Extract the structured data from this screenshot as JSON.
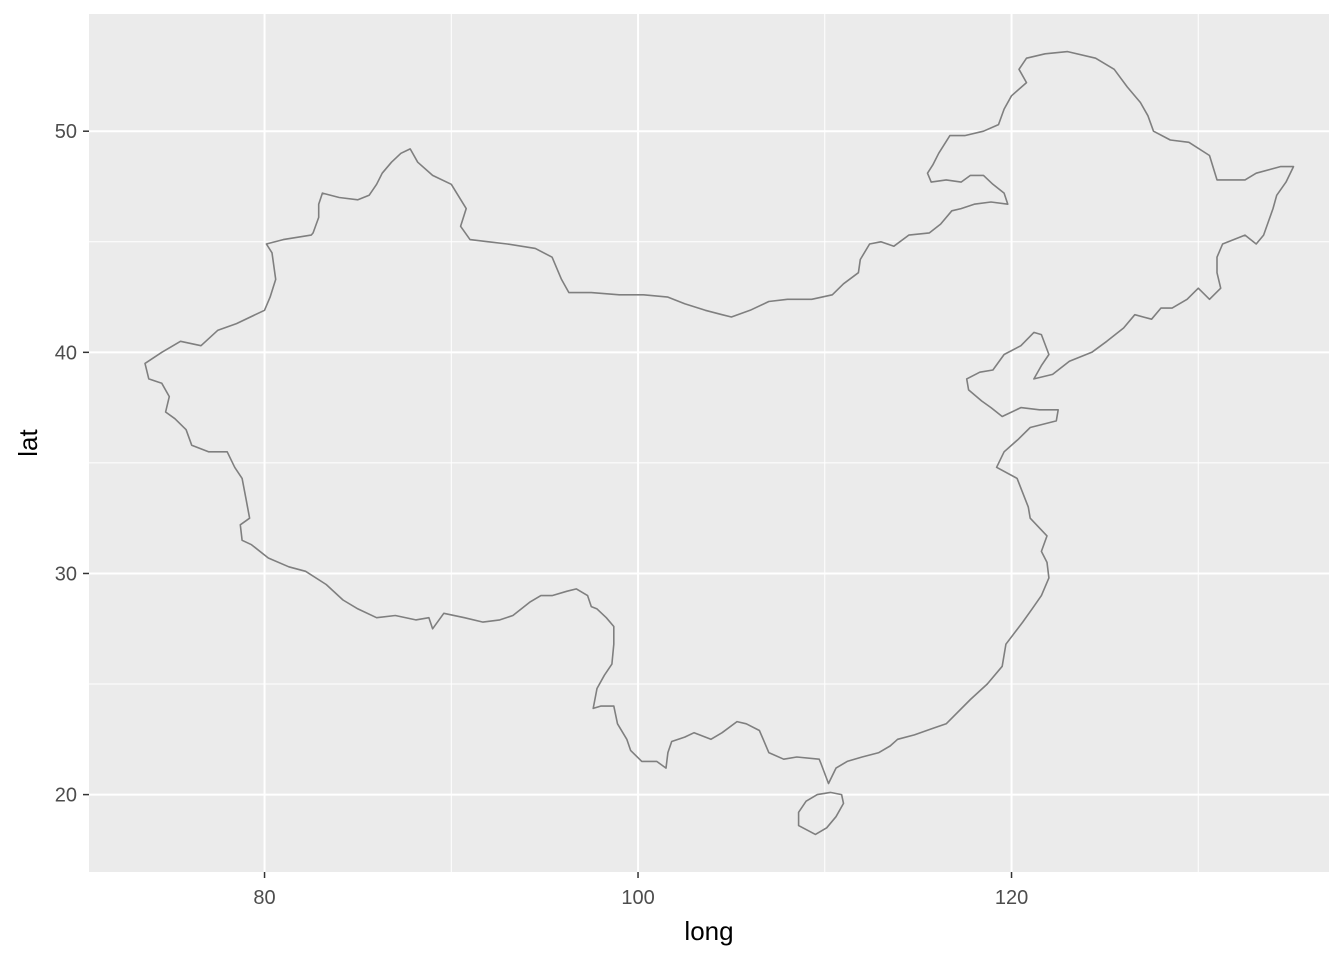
{
  "chart_data": {
    "type": "map",
    "xlabel": "long",
    "ylabel": "lat",
    "xlim": [
      70.6,
      137.0
    ],
    "ylim": [
      16.5,
      55.3
    ],
    "x_major_ticks": [
      80,
      100,
      120
    ],
    "x_minor_ticks": [
      90,
      110,
      130
    ],
    "y_major_ticks": [
      20,
      30,
      40,
      50
    ],
    "y_minor_ticks": [
      25,
      35,
      45
    ],
    "grid": true,
    "panel_color": "#ebebeb",
    "grid_color": "#ffffff",
    "outline_color": "#7f7f7f",
    "fill": "none",
    "polygons": [
      {
        "name": "mainland",
        "points": [
          [
            73.6,
            39.5
          ],
          [
            74.5,
            40.0
          ],
          [
            75.5,
            40.5
          ],
          [
            76.6,
            40.3
          ],
          [
            77.5,
            41.0
          ],
          [
            78.5,
            41.3
          ],
          [
            80.0,
            41.9
          ],
          [
            80.3,
            42.5
          ],
          [
            80.6,
            43.3
          ],
          [
            80.4,
            44.5
          ],
          [
            80.1,
            44.9
          ],
          [
            81.0,
            45.1
          ],
          [
            82.5,
            45.3
          ],
          [
            82.6,
            45.4
          ],
          [
            82.9,
            46.1
          ],
          [
            82.9,
            46.7
          ],
          [
            83.1,
            47.2
          ],
          [
            84.0,
            47.0
          ],
          [
            85.0,
            46.9
          ],
          [
            85.6,
            47.1
          ],
          [
            86.0,
            47.6
          ],
          [
            86.3,
            48.1
          ],
          [
            86.8,
            48.6
          ],
          [
            87.3,
            49.0
          ],
          [
            87.8,
            49.2
          ],
          [
            88.2,
            48.6
          ],
          [
            89.0,
            48.0
          ],
          [
            90.0,
            47.6
          ],
          [
            90.8,
            46.5
          ],
          [
            90.5,
            45.7
          ],
          [
            91.0,
            45.1
          ],
          [
            92.0,
            45.0
          ],
          [
            93.0,
            44.9
          ],
          [
            94.5,
            44.7
          ],
          [
            95.4,
            44.3
          ],
          [
            95.9,
            43.3
          ],
          [
            96.3,
            42.7
          ],
          [
            97.5,
            42.7
          ],
          [
            99.0,
            42.6
          ],
          [
            100.3,
            42.6
          ],
          [
            101.6,
            42.5
          ],
          [
            102.5,
            42.2
          ],
          [
            103.6,
            41.9
          ],
          [
            104.5,
            41.7
          ],
          [
            105.0,
            41.6
          ],
          [
            106.0,
            41.9
          ],
          [
            107.0,
            42.3
          ],
          [
            108.0,
            42.4
          ],
          [
            109.3,
            42.4
          ],
          [
            110.4,
            42.6
          ],
          [
            111.0,
            43.1
          ],
          [
            111.8,
            43.6
          ],
          [
            111.9,
            44.2
          ],
          [
            112.4,
            44.9
          ],
          [
            113.0,
            45.0
          ],
          [
            113.7,
            44.8
          ],
          [
            114.5,
            45.3
          ],
          [
            115.6,
            45.4
          ],
          [
            116.2,
            45.8
          ],
          [
            116.8,
            46.4
          ],
          [
            117.3,
            46.5
          ],
          [
            118.0,
            46.7
          ],
          [
            118.9,
            46.8
          ],
          [
            119.8,
            46.7
          ],
          [
            119.6,
            47.2
          ],
          [
            119.0,
            47.6
          ],
          [
            118.5,
            48.0
          ],
          [
            117.8,
            48.0
          ],
          [
            117.3,
            47.7
          ],
          [
            116.5,
            47.8
          ],
          [
            115.7,
            47.7
          ],
          [
            115.5,
            48.1
          ],
          [
            115.8,
            48.5
          ],
          [
            116.1,
            49.0
          ],
          [
            116.7,
            49.8
          ],
          [
            117.5,
            49.8
          ],
          [
            118.5,
            50.0
          ],
          [
            119.3,
            50.3
          ],
          [
            119.6,
            51.0
          ],
          [
            120.0,
            51.6
          ],
          [
            120.8,
            52.2
          ],
          [
            120.4,
            52.8
          ],
          [
            120.8,
            53.3
          ],
          [
            121.8,
            53.5
          ],
          [
            123.0,
            53.6
          ],
          [
            124.5,
            53.3
          ],
          [
            125.5,
            52.8
          ],
          [
            126.2,
            52.0
          ],
          [
            126.9,
            51.3
          ],
          [
            127.3,
            50.7
          ],
          [
            127.6,
            50.0
          ],
          [
            128.5,
            49.6
          ],
          [
            129.5,
            49.5
          ],
          [
            130.6,
            48.9
          ],
          [
            131.0,
            47.8
          ],
          [
            132.5,
            47.8
          ],
          [
            133.1,
            48.1
          ],
          [
            134.4,
            48.4
          ],
          [
            135.1,
            48.4
          ],
          [
            134.7,
            47.7
          ],
          [
            134.2,
            47.1
          ],
          [
            134.0,
            46.5
          ],
          [
            133.5,
            45.3
          ],
          [
            133.1,
            44.9
          ],
          [
            132.5,
            45.3
          ],
          [
            131.3,
            44.9
          ],
          [
            131.0,
            44.3
          ],
          [
            131.0,
            43.6
          ],
          [
            131.2,
            42.9
          ],
          [
            130.6,
            42.4
          ],
          [
            130.0,
            42.9
          ],
          [
            129.4,
            42.4
          ],
          [
            128.6,
            42.0
          ],
          [
            128.0,
            42.0
          ],
          [
            127.5,
            41.5
          ],
          [
            126.6,
            41.7
          ],
          [
            126.0,
            41.1
          ],
          [
            125.1,
            40.5
          ],
          [
            124.3,
            40.0
          ],
          [
            123.1,
            39.6
          ],
          [
            122.2,
            39.0
          ],
          [
            121.2,
            38.8
          ],
          [
            121.6,
            39.4
          ],
          [
            122.0,
            39.9
          ],
          [
            121.6,
            40.8
          ],
          [
            121.2,
            40.9
          ],
          [
            120.5,
            40.3
          ],
          [
            119.6,
            39.9
          ],
          [
            119.0,
            39.2
          ],
          [
            118.3,
            39.1
          ],
          [
            117.6,
            38.8
          ],
          [
            117.7,
            38.3
          ],
          [
            118.4,
            37.8
          ],
          [
            118.9,
            37.5
          ],
          [
            119.5,
            37.1
          ],
          [
            120.5,
            37.5
          ],
          [
            121.5,
            37.4
          ],
          [
            122.5,
            37.4
          ],
          [
            122.4,
            36.9
          ],
          [
            121.0,
            36.6
          ],
          [
            120.4,
            36.1
          ],
          [
            119.6,
            35.5
          ],
          [
            119.2,
            34.8
          ],
          [
            120.3,
            34.3
          ],
          [
            120.9,
            33.0
          ],
          [
            121.0,
            32.5
          ],
          [
            121.9,
            31.7
          ],
          [
            121.6,
            31.0
          ],
          [
            121.9,
            30.5
          ],
          [
            122.0,
            29.8
          ],
          [
            121.6,
            29.0
          ],
          [
            121.1,
            28.4
          ],
          [
            120.6,
            27.8
          ],
          [
            119.7,
            26.8
          ],
          [
            119.5,
            25.8
          ],
          [
            118.7,
            25.0
          ],
          [
            117.8,
            24.3
          ],
          [
            116.5,
            23.2
          ],
          [
            115.8,
            23.0
          ],
          [
            114.8,
            22.7
          ],
          [
            113.9,
            22.5
          ],
          [
            113.5,
            22.2
          ],
          [
            112.9,
            21.9
          ],
          [
            112.0,
            21.7
          ],
          [
            111.2,
            21.5
          ],
          [
            110.6,
            21.2
          ],
          [
            110.2,
            20.5
          ],
          [
            109.8,
            21.4
          ],
          [
            109.7,
            21.6
          ],
          [
            108.5,
            21.7
          ],
          [
            107.8,
            21.6
          ],
          [
            107.0,
            21.9
          ],
          [
            106.7,
            22.5
          ],
          [
            106.5,
            22.9
          ],
          [
            105.8,
            23.2
          ],
          [
            105.3,
            23.3
          ],
          [
            104.5,
            22.8
          ],
          [
            103.9,
            22.5
          ],
          [
            103.0,
            22.8
          ],
          [
            102.5,
            22.6
          ],
          [
            101.8,
            22.4
          ],
          [
            101.6,
            21.9
          ],
          [
            101.5,
            21.2
          ],
          [
            101.0,
            21.5
          ],
          [
            100.2,
            21.5
          ],
          [
            99.6,
            22.0
          ],
          [
            99.4,
            22.5
          ],
          [
            98.9,
            23.2
          ],
          [
            98.7,
            24.0
          ],
          [
            98.0,
            24.0
          ],
          [
            97.6,
            23.9
          ],
          [
            97.8,
            24.8
          ],
          [
            98.2,
            25.4
          ],
          [
            98.6,
            25.9
          ],
          [
            98.7,
            26.8
          ],
          [
            98.7,
            27.6
          ],
          [
            98.3,
            28.0
          ],
          [
            97.8,
            28.4
          ],
          [
            97.5,
            28.5
          ],
          [
            97.3,
            29.0
          ],
          [
            96.7,
            29.3
          ],
          [
            96.2,
            29.2
          ],
          [
            95.4,
            29.0
          ],
          [
            94.8,
            29.0
          ],
          [
            94.2,
            28.7
          ],
          [
            93.3,
            28.1
          ],
          [
            92.6,
            27.9
          ],
          [
            91.7,
            27.8
          ],
          [
            90.7,
            28.0
          ],
          [
            89.6,
            28.2
          ],
          [
            89.0,
            27.5
          ],
          [
            88.8,
            28.0
          ],
          [
            88.1,
            27.9
          ],
          [
            87.0,
            28.1
          ],
          [
            86.0,
            28.0
          ],
          [
            85.0,
            28.4
          ],
          [
            84.2,
            28.8
          ],
          [
            83.3,
            29.5
          ],
          [
            82.2,
            30.1
          ],
          [
            81.3,
            30.3
          ],
          [
            80.2,
            30.7
          ],
          [
            79.3,
            31.3
          ],
          [
            78.8,
            31.5
          ],
          [
            78.7,
            32.2
          ],
          [
            79.2,
            32.5
          ],
          [
            79.0,
            33.4
          ],
          [
            78.8,
            34.3
          ],
          [
            78.4,
            34.8
          ],
          [
            78.0,
            35.5
          ],
          [
            77.0,
            35.5
          ],
          [
            76.1,
            35.8
          ],
          [
            75.8,
            36.5
          ],
          [
            75.2,
            37.0
          ],
          [
            74.7,
            37.3
          ],
          [
            74.9,
            38.0
          ],
          [
            74.5,
            38.6
          ],
          [
            73.8,
            38.8
          ],
          [
            73.6,
            39.5
          ]
        ]
      },
      {
        "name": "hainan",
        "points": [
          [
            108.6,
            19.2
          ],
          [
            108.6,
            18.6
          ],
          [
            109.5,
            18.2
          ],
          [
            110.1,
            18.5
          ],
          [
            110.6,
            19.0
          ],
          [
            111.0,
            19.6
          ],
          [
            110.9,
            20.0
          ],
          [
            110.3,
            20.1
          ],
          [
            109.6,
            20.0
          ],
          [
            109.0,
            19.7
          ],
          [
            108.6,
            19.2
          ]
        ]
      }
    ]
  }
}
